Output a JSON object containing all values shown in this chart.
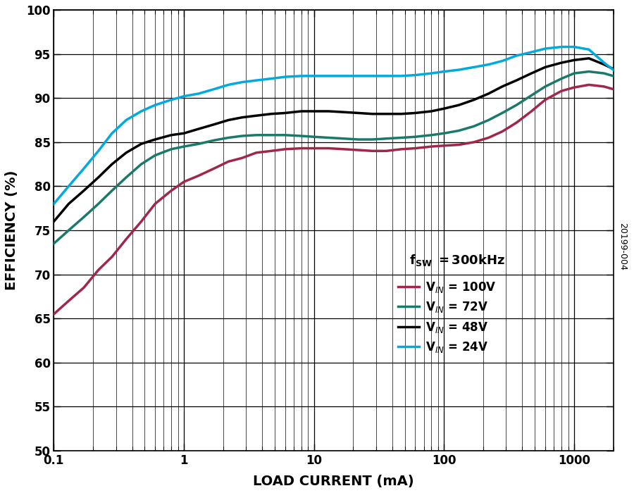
{
  "xlabel": "LOAD CURRENT (mA)",
  "ylabel": "EFFICIENCY (%)",
  "xlim": [
    0.1,
    2000
  ],
  "ylim": [
    50,
    100
  ],
  "yticks": [
    50,
    55,
    60,
    65,
    70,
    75,
    80,
    85,
    90,
    95,
    100
  ],
  "annotation": "20199-004",
  "series": [
    {
      "label": "V$_{IN}$ = 100V",
      "color": "#A0274A",
      "x": [
        0.1,
        0.13,
        0.17,
        0.22,
        0.28,
        0.36,
        0.47,
        0.6,
        0.8,
        1.0,
        1.3,
        1.7,
        2.2,
        2.8,
        3.6,
        4.7,
        6.0,
        8.0,
        10,
        13,
        17,
        22,
        28,
        36,
        47,
        60,
        80,
        100,
        130,
        170,
        220,
        280,
        360,
        470,
        600,
        800,
        1000,
        1300,
        1700,
        2000
      ],
      "y": [
        65.5,
        67.0,
        68.5,
        70.5,
        72.0,
        74.0,
        76.0,
        78.0,
        79.5,
        80.5,
        81.2,
        82.0,
        82.8,
        83.2,
        83.8,
        84.0,
        84.2,
        84.3,
        84.3,
        84.3,
        84.2,
        84.1,
        84.0,
        84.0,
        84.2,
        84.3,
        84.5,
        84.6,
        84.7,
        85.0,
        85.5,
        86.2,
        87.2,
        88.5,
        89.8,
        90.8,
        91.2,
        91.5,
        91.3,
        91.0
      ]
    },
    {
      "label": "V$_{IN}$ = 72V",
      "color": "#1A7A6A",
      "x": [
        0.1,
        0.13,
        0.17,
        0.22,
        0.28,
        0.36,
        0.47,
        0.6,
        0.8,
        1.0,
        1.3,
        1.7,
        2.2,
        2.8,
        3.6,
        4.7,
        6.0,
        8.0,
        10,
        13,
        17,
        22,
        28,
        36,
        47,
        60,
        80,
        100,
        130,
        170,
        220,
        280,
        360,
        470,
        600,
        800,
        1000,
        1300,
        1700,
        2000
      ],
      "y": [
        73.5,
        75.0,
        76.5,
        78.0,
        79.5,
        81.0,
        82.5,
        83.5,
        84.2,
        84.5,
        84.8,
        85.2,
        85.5,
        85.7,
        85.8,
        85.8,
        85.8,
        85.7,
        85.6,
        85.5,
        85.4,
        85.3,
        85.3,
        85.4,
        85.5,
        85.6,
        85.8,
        86.0,
        86.3,
        86.8,
        87.5,
        88.3,
        89.2,
        90.3,
        91.3,
        92.2,
        92.8,
        93.0,
        92.8,
        92.5
      ]
    },
    {
      "label": "V$_{IN}$ = 48V",
      "color": "#000000",
      "x": [
        0.1,
        0.13,
        0.17,
        0.22,
        0.28,
        0.36,
        0.47,
        0.6,
        0.8,
        1.0,
        1.3,
        1.7,
        2.2,
        2.8,
        3.6,
        4.7,
        6.0,
        8.0,
        10,
        13,
        17,
        22,
        28,
        36,
        47,
        60,
        80,
        100,
        130,
        170,
        220,
        280,
        360,
        470,
        600,
        800,
        1000,
        1300,
        1700,
        2000
      ],
      "y": [
        76.0,
        78.0,
        79.5,
        81.0,
        82.5,
        83.8,
        84.8,
        85.3,
        85.8,
        86.0,
        86.5,
        87.0,
        87.5,
        87.8,
        88.0,
        88.2,
        88.3,
        88.5,
        88.5,
        88.5,
        88.4,
        88.3,
        88.2,
        88.2,
        88.2,
        88.3,
        88.5,
        88.8,
        89.2,
        89.8,
        90.5,
        91.3,
        92.0,
        92.8,
        93.5,
        94.0,
        94.3,
        94.5,
        93.8,
        93.3
      ]
    },
    {
      "label": "V$_{IN}$ = 24V",
      "color": "#00AADD",
      "x": [
        0.1,
        0.13,
        0.17,
        0.22,
        0.28,
        0.36,
        0.47,
        0.6,
        0.8,
        1.0,
        1.3,
        1.7,
        2.2,
        2.8,
        3.6,
        4.7,
        6.0,
        8.0,
        10,
        13,
        17,
        22,
        28,
        36,
        47,
        60,
        80,
        100,
        130,
        170,
        220,
        280,
        360,
        470,
        600,
        800,
        1000,
        1300,
        1700,
        2000
      ],
      "y": [
        78.0,
        80.0,
        82.0,
        84.0,
        86.0,
        87.5,
        88.5,
        89.2,
        89.8,
        90.2,
        90.5,
        91.0,
        91.5,
        91.8,
        92.0,
        92.2,
        92.4,
        92.5,
        92.5,
        92.5,
        92.5,
        92.5,
        92.5,
        92.5,
        92.5,
        92.6,
        92.8,
        93.0,
        93.2,
        93.5,
        93.8,
        94.2,
        94.8,
        95.2,
        95.6,
        95.8,
        95.8,
        95.5,
        94.0,
        93.2
      ]
    }
  ],
  "line_width": 2.5,
  "background_color": "#ffffff"
}
